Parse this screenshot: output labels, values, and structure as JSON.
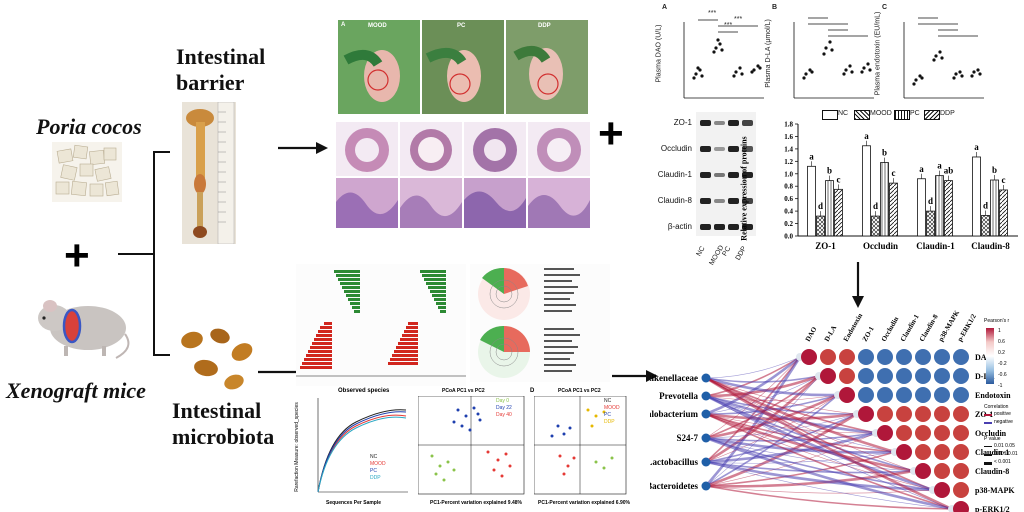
{
  "left": {
    "poria_title": "Poria cocos",
    "plus": "+",
    "mice_title": "Xenograft mice",
    "barrier_title_1": "Intestinal",
    "barrier_title_2": "barrier",
    "microbiota_title_1": "Intestinal",
    "microbiota_title_2": "microbiota"
  },
  "photos": {
    "panel_letter": "A",
    "groups": [
      "MOOD",
      "PC",
      "DDP"
    ]
  },
  "plasma": {
    "A": {
      "letter": "A",
      "ylabel": "Plasma DAO (U/L)"
    },
    "B": {
      "letter": "B",
      "ylabel": "Plasma D-LA (μmol/L)"
    },
    "C": {
      "letter": "C",
      "ylabel": "Plasma endotoxin (EU/mL)"
    },
    "sig": "***"
  },
  "western": {
    "proteins": [
      "ZO-1",
      "Occludin",
      "Claudin-1",
      "Claudin-8",
      "β-actin"
    ],
    "groups": [
      "NC",
      "MOOD",
      "PC",
      "DDP"
    ]
  },
  "legend_bar": {
    "items": [
      "NC",
      "MOOD",
      "PC",
      "DDP"
    ]
  },
  "chart_data": {
    "type": "bar",
    "title": "",
    "ylabel": "Relative expression of proteins",
    "xlabel": "",
    "categories": [
      "ZO-1",
      "Occludin",
      "Claudin-1",
      "Claudin-8"
    ],
    "ylim": [
      0,
      1.8
    ],
    "yticks": [
      "0.0",
      "0.2",
      "0.4",
      "0.6",
      "0.8",
      "1.0",
      "1.2",
      "1.4",
      "1.6",
      "1.8"
    ],
    "series": [
      {
        "name": "NC",
        "values": [
          1.12,
          1.45,
          0.92,
          1.27
        ],
        "letters": [
          "a",
          "a",
          "a",
          "a"
        ]
      },
      {
        "name": "MOOD",
        "values": [
          0.32,
          0.32,
          0.4,
          0.33
        ],
        "letters": [
          "d",
          "d",
          "d",
          "d"
        ]
      },
      {
        "name": "PC",
        "values": [
          0.89,
          1.18,
          0.97,
          0.9
        ],
        "letters": [
          "b",
          "b",
          "a",
          "b"
        ]
      },
      {
        "name": "DDP",
        "values": [
          0.75,
          0.85,
          0.89,
          0.74
        ],
        "letters": [
          "c",
          "c",
          "ab",
          "c"
        ]
      }
    ]
  },
  "microbiota_panels": {
    "observed_title": "Observed species",
    "observed_xlabel": "Sequences Per Sample",
    "observed_ylabel": "Rarefaction Measure: observed_species",
    "observed_legend": [
      "NC",
      "MOOD",
      "PC",
      "DDP"
    ],
    "pcoa_c_title": "PCoA PC1 vs PC2",
    "pcoa_c_legend": [
      "Day 0",
      "Day 22",
      "Day 40"
    ],
    "pcoa_c_xlabel": "PC1-Percent variation explained 9.48%",
    "pcoa_d_letter": "D",
    "pcoa_d_title": "PCoA PC1 vs PC2",
    "pcoa_d_legend": [
      "NC",
      "MOOD",
      "PC",
      "DDP"
    ],
    "pcoa_d_xlabel": "PC1-Percent variation explained 6.90%"
  },
  "network": {
    "bacteria": [
      "Rikenellaceae",
      "Prevotella",
      "Dehalobacterium",
      "S24-7",
      "Lactobacillus",
      "Bacteroidetes"
    ],
    "columns": [
      "DAO",
      "D-LA",
      "Endotoxin",
      "ZO-1",
      "Occludin",
      "Claudin-1",
      "Claudin-8",
      "p38-MAPK",
      "p-ERK1/2"
    ],
    "rows": [
      "DAO",
      "D-LA",
      "Endotoxin",
      "ZO-1",
      "Occludin",
      "Claudin-1",
      "Claudin-8",
      "p38-MAPK",
      "p-ERK1/2"
    ],
    "colorbar_title": "Pearson's r",
    "colorbar_ticks": [
      "1",
      "0.6",
      "0.2",
      "-0.2",
      "-0.6",
      "-1"
    ],
    "corr_title": "Correlation",
    "corr_pos": "positive",
    "corr_neg": "negative",
    "pval_title": "P value",
    "pval_items": [
      "0.01 0.05",
      "0.001 0.01",
      "< 0.001"
    ],
    "colors": {
      "positive": "#b0173a",
      "negative": "#4a3fb0",
      "node": "#1f5fa8"
    }
  }
}
